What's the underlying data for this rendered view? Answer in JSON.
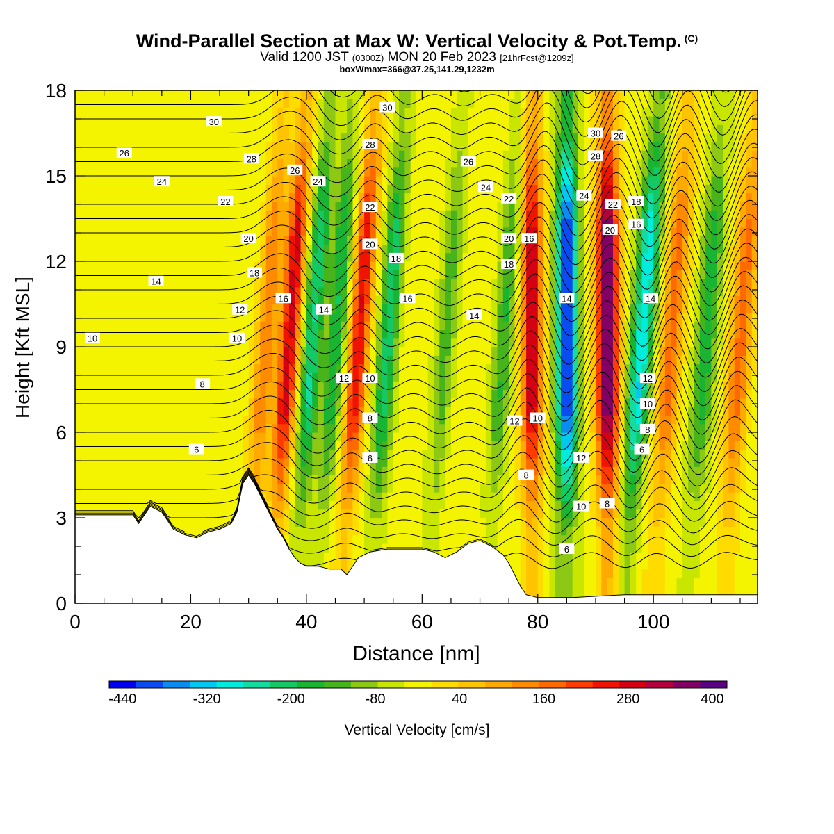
{
  "title": {
    "main": "Wind-Parallel Section at Max W: Vertical Velocity & Pot.Temp.",
    "copyright": "(C)",
    "valid_prefix": "Valid 1200 JST",
    "valid_zulu": "(0300Z)",
    "valid_date": "MON 20 Feb 2023",
    "forecast": "[21hrFcst@1209z]",
    "boxwmax": "boxWmax=366@37.25,141.29,1232m"
  },
  "chart_data": {
    "type": "heatmap",
    "xlabel": "Distance [nm]",
    "ylabel": "Height [Kft MSL]",
    "xlim": [
      0,
      118
    ],
    "ylim": [
      0,
      18
    ],
    "xticks": [
      0,
      20,
      40,
      60,
      80,
      100
    ],
    "yticks": [
      0,
      3,
      6,
      9,
      12,
      15,
      18
    ],
    "colorbar": {
      "label": "Vertical Velocity [cm/s]",
      "tick_labels": [
        "-440",
        "-320",
        "-200",
        "-80",
        "40",
        "160",
        "280",
        "400"
      ],
      "tick_values": [
        -440,
        -320,
        -200,
        -80,
        40,
        160,
        280,
        400
      ],
      "levels": [
        -440,
        -400,
        -360,
        -320,
        -280,
        -240,
        -200,
        -160,
        -120,
        -80,
        -40,
        0,
        40,
        80,
        120,
        160,
        200,
        240,
        280,
        320,
        360,
        400,
        440
      ],
      "colors": [
        "#0000f0",
        "#0a4cf0",
        "#0a8cf0",
        "#00c8f0",
        "#00ecdc",
        "#14dca0",
        "#14c864",
        "#18b432",
        "#48b41c",
        "#8cc814",
        "#c8e600",
        "#f4f400",
        "#ffdc00",
        "#ffc400",
        "#ffaa00",
        "#ff8c00",
        "#ff6a00",
        "#ff3c00",
        "#f01400",
        "#d40014",
        "#b4003c",
        "#820064",
        "#5a0082"
      ]
    },
    "vertical_velocity_features": [
      {
        "x_center": 33,
        "type": "updraft",
        "w_max": 180
      },
      {
        "x_center": 37,
        "type": "updraft",
        "w_max": 320
      },
      {
        "x_center": 41,
        "type": "downdraft",
        "w_min": -220
      },
      {
        "x_center": 45,
        "type": "downdraft",
        "w_min": -180
      },
      {
        "x_center": 49,
        "type": "updraft",
        "w_max": 300
      },
      {
        "x_center": 54,
        "type": "downdraft",
        "w_min": -200
      },
      {
        "x_center": 64,
        "type": "downdraft",
        "w_min": -120
      },
      {
        "x_center": 74,
        "type": "downdraft",
        "w_min": -140
      },
      {
        "x_center": 79,
        "type": "updraft",
        "w_max": 330
      },
      {
        "x_center": 85,
        "type": "downdraft",
        "w_min": -440
      },
      {
        "x_center": 92,
        "type": "updraft",
        "w_max": 440
      },
      {
        "x_center": 98,
        "type": "downdraft",
        "w_min": -300
      },
      {
        "x_center": 103,
        "type": "updraft",
        "w_max": 200
      },
      {
        "x_center": 109,
        "type": "downdraft",
        "w_min": -160
      },
      {
        "x_center": 115,
        "type": "updraft",
        "w_max": 200
      }
    ],
    "potential_temperature_labels": [
      {
        "x": 3,
        "y": 9.3,
        "label": "10"
      },
      {
        "x": 21,
        "y": 5.4,
        "label": "6"
      },
      {
        "x": 22,
        "y": 7.7,
        "label": "8"
      },
      {
        "x": 14,
        "y": 11.3,
        "label": "14"
      },
      {
        "x": 28,
        "y": 9.3,
        "label": "10"
      },
      {
        "x": 28.5,
        "y": 10.3,
        "label": "12"
      },
      {
        "x": 31,
        "y": 11.6,
        "label": "18"
      },
      {
        "x": 30,
        "y": 12.8,
        "label": "20"
      },
      {
        "x": 26,
        "y": 14.1,
        "label": "22"
      },
      {
        "x": 15,
        "y": 14.8,
        "label": "24"
      },
      {
        "x": 8.5,
        "y": 15.8,
        "label": "26"
      },
      {
        "x": 30.5,
        "y": 15.6,
        "label": "28"
      },
      {
        "x": 24,
        "y": 16.9,
        "label": "30"
      },
      {
        "x": 36,
        "y": 10.7,
        "label": "16"
      },
      {
        "x": 38,
        "y": 15.2,
        "label": "26"
      },
      {
        "x": 42,
        "y": 14.8,
        "label": "24"
      },
      {
        "x": 43,
        "y": 10.3,
        "label": "14"
      },
      {
        "x": 46.5,
        "y": 7.9,
        "label": "12"
      },
      {
        "x": 51,
        "y": 7.9,
        "label": "10"
      },
      {
        "x": 51,
        "y": 6.5,
        "label": "8"
      },
      {
        "x": 51,
        "y": 5.1,
        "label": "6"
      },
      {
        "x": 51,
        "y": 12.6,
        "label": "20"
      },
      {
        "x": 51,
        "y": 13.9,
        "label": "22"
      },
      {
        "x": 51,
        "y": 16.1,
        "label": "28"
      },
      {
        "x": 54,
        "y": 17.4,
        "label": "30"
      },
      {
        "x": 55.5,
        "y": 12.1,
        "label": "18"
      },
      {
        "x": 57.5,
        "y": 10.7,
        "label": "16"
      },
      {
        "x": 68,
        "y": 15.5,
        "label": "26"
      },
      {
        "x": 69,
        "y": 10.1,
        "label": "14"
      },
      {
        "x": 71,
        "y": 14.6,
        "label": "24"
      },
      {
        "x": 75,
        "y": 14.2,
        "label": "22"
      },
      {
        "x": 75,
        "y": 12.8,
        "label": "20"
      },
      {
        "x": 75,
        "y": 11.9,
        "label": "18"
      },
      {
        "x": 76,
        "y": 6.4,
        "label": "12"
      },
      {
        "x": 80,
        "y": 6.5,
        "label": "10"
      },
      {
        "x": 78.5,
        "y": 12.8,
        "label": "16"
      },
      {
        "x": 78,
        "y": 4.5,
        "label": "8"
      },
      {
        "x": 85,
        "y": 10.7,
        "label": "14"
      },
      {
        "x": 85,
        "y": 1.9,
        "label": "6"
      },
      {
        "x": 87.5,
        "y": 3.4,
        "label": "10"
      },
      {
        "x": 87.5,
        "y": 5.1,
        "label": "12"
      },
      {
        "x": 88,
        "y": 14.3,
        "label": "24"
      },
      {
        "x": 90,
        "y": 16.5,
        "label": "30"
      },
      {
        "x": 90,
        "y": 15.7,
        "label": "28"
      },
      {
        "x": 94,
        "y": 16.4,
        "label": "26"
      },
      {
        "x": 93,
        "y": 14.0,
        "label": "22"
      },
      {
        "x": 92.5,
        "y": 13.1,
        "label": "20"
      },
      {
        "x": 92,
        "y": 3.5,
        "label": "8"
      },
      {
        "x": 97,
        "y": 14.1,
        "label": "18"
      },
      {
        "x": 97,
        "y": 13.3,
        "label": "16"
      },
      {
        "x": 99.5,
        "y": 10.7,
        "label": "14"
      },
      {
        "x": 99,
        "y": 7.9,
        "label": "12"
      },
      {
        "x": 99,
        "y": 7.0,
        "label": "10"
      },
      {
        "x": 99,
        "y": 6.1,
        "label": "8"
      },
      {
        "x": 98,
        "y": 5.4,
        "label": "6"
      }
    ],
    "terrain_profile": [
      [
        0,
        3.1
      ],
      [
        4,
        3.1
      ],
      [
        5,
        3.1
      ],
      [
        7,
        3.1
      ],
      [
        9,
        3.1
      ],
      [
        10,
        3.1
      ],
      [
        11,
        2.8
      ],
      [
        12,
        3.1
      ],
      [
        13,
        3.4
      ],
      [
        15,
        3.2
      ],
      [
        17,
        2.6
      ],
      [
        19,
        2.4
      ],
      [
        21,
        2.3
      ],
      [
        23,
        2.5
      ],
      [
        25,
        2.6
      ],
      [
        27,
        2.8
      ],
      [
        28,
        3.2
      ],
      [
        29,
        4.2
      ],
      [
        30,
        4.5
      ],
      [
        31,
        4.2
      ],
      [
        32,
        3.8
      ],
      [
        33,
        3.4
      ],
      [
        34,
        3.0
      ],
      [
        35,
        2.6
      ],
      [
        36,
        2.3
      ],
      [
        37,
        1.9
      ],
      [
        38,
        1.6
      ],
      [
        39,
        1.4
      ],
      [
        40,
        1.3
      ],
      [
        42,
        1.3
      ],
      [
        44,
        1.2
      ],
      [
        46,
        1.2
      ],
      [
        47,
        1.0
      ],
      [
        48,
        1.3
      ],
      [
        49,
        1.6
      ],
      [
        51,
        1.8
      ],
      [
        54,
        1.9
      ],
      [
        57,
        1.9
      ],
      [
        60,
        1.9
      ],
      [
        62,
        1.8
      ],
      [
        64,
        1.6
      ],
      [
        66,
        1.8
      ],
      [
        68,
        2.1
      ],
      [
        70,
        2.2
      ],
      [
        72,
        2.0
      ],
      [
        74,
        1.7
      ],
      [
        75,
        1.4
      ],
      [
        76,
        1.0
      ],
      [
        77,
        0.6
      ],
      [
        78,
        0.3
      ],
      [
        80,
        0.2
      ],
      [
        86,
        0.2
      ],
      [
        95,
        0.3
      ],
      [
        118,
        0.3
      ]
    ]
  }
}
